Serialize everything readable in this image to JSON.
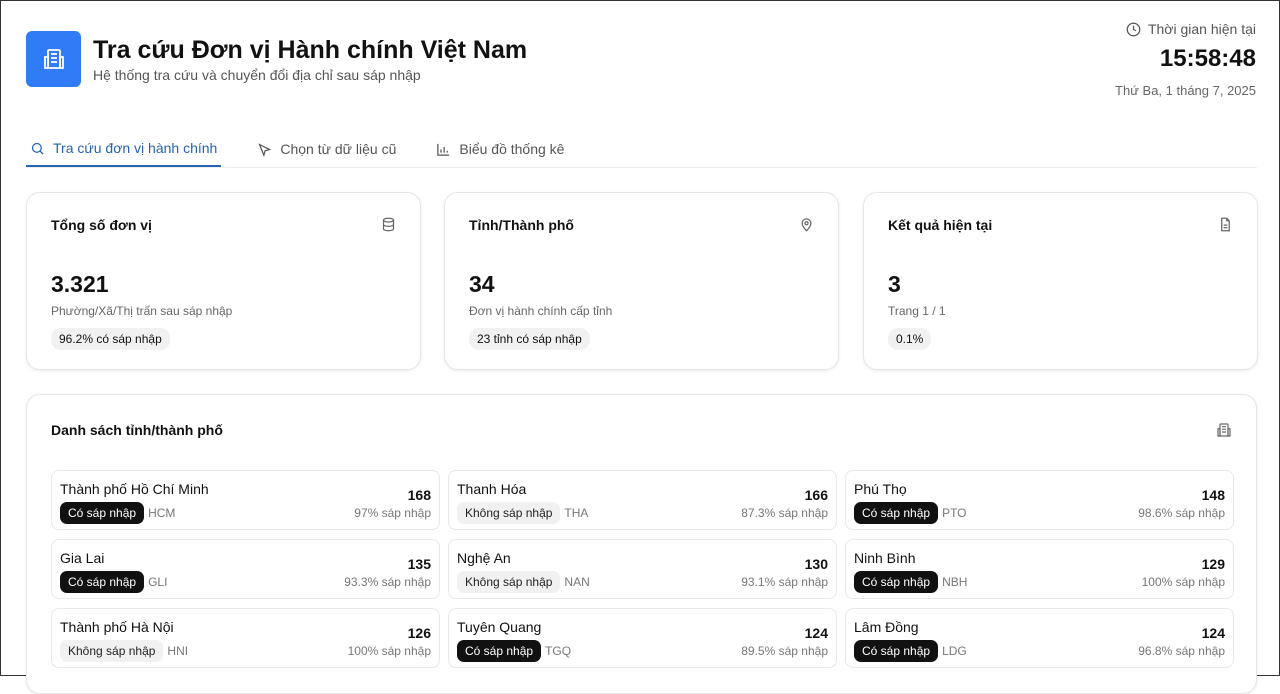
{
  "header": {
    "title": "Tra cứu Đơn vị Hành chính Việt Nam",
    "subtitle": "Hệ thống tra cứu và chuyển đổi địa chỉ sau sáp nhập",
    "time_label": "Thời gian hiện tại",
    "time": "15:58:48",
    "date": "Thứ Ba, 1 tháng 7, 2025",
    "accent": "#2f7cf6"
  },
  "tabs": [
    {
      "label": "Tra cứu đơn vị hành chính",
      "icon": "search-icon"
    },
    {
      "label": "Chọn từ dữ liệu cũ",
      "icon": "cursor-icon"
    },
    {
      "label": "Biểu đồ thống kê",
      "icon": "bar-chart-icon"
    }
  ],
  "stats": [
    {
      "title": "Tổng số đơn vị",
      "value": "3.321",
      "sub": "Phường/Xã/Thị trấn sau sáp nhập",
      "pill": "96.2% có sáp nhập",
      "icon": "database-icon"
    },
    {
      "title": "Tỉnh/Thành phố",
      "value": "34",
      "sub": "Đơn vị hành chính cấp tỉnh",
      "pill": "23 tỉnh có sáp nhập",
      "icon": "map-pin-icon"
    },
    {
      "title": "Kết quả hiện tại",
      "value": "3",
      "sub": "Trang 1 / 1",
      "pill": "0.1%",
      "icon": "document-icon"
    }
  ],
  "list": {
    "title": "Danh sách tỉnh/thành phố",
    "items": [
      {
        "name": "Thành phố Hồ Chí Minh",
        "badge": "Có sáp nhập",
        "merged": true,
        "code": "HCM",
        "count": "168",
        "pct": "97% sáp nhập"
      },
      {
        "name": "Thanh Hóa",
        "badge": "Không sáp nhập",
        "merged": false,
        "code": "THA",
        "count": "166",
        "pct": "87.3% sáp nhập"
      },
      {
        "name": "Phú Thọ",
        "badge": "Có sáp nhập",
        "merged": true,
        "code": "PTO",
        "count": "148",
        "pct": "98.6% sáp nhập"
      },
      {
        "name": "Gia Lai",
        "badge": "Có sáp nhập",
        "merged": true,
        "code": "GLI",
        "count": "135",
        "pct": "93.3% sáp nhập"
      },
      {
        "name": "Nghệ An",
        "badge": "Không sáp nhập",
        "merged": false,
        "code": "NAN",
        "count": "130",
        "pct": "93.1% sáp nhập"
      },
      {
        "name": "Ninh Bình",
        "badge": "Có sáp nhập",
        "merged": true,
        "code": "NBH",
        "count": "129",
        "pct": "100% sáp nhập"
      },
      {
        "name": "Thành phố Hà Nội",
        "badge": "Không sáp nhập",
        "merged": false,
        "code": "HNI",
        "count": "126",
        "pct": "100% sáp nhập"
      },
      {
        "name": "Tuyên Quang",
        "badge": "Có sáp nhập",
        "merged": true,
        "code": "TGQ",
        "count": "124",
        "pct": "89.5% sáp nhập"
      },
      {
        "name": "Lâm Đồng",
        "badge": "Có sáp nhập",
        "merged": true,
        "code": "LDG",
        "count": "124",
        "pct": "96.8% sáp nhập"
      }
    ]
  }
}
